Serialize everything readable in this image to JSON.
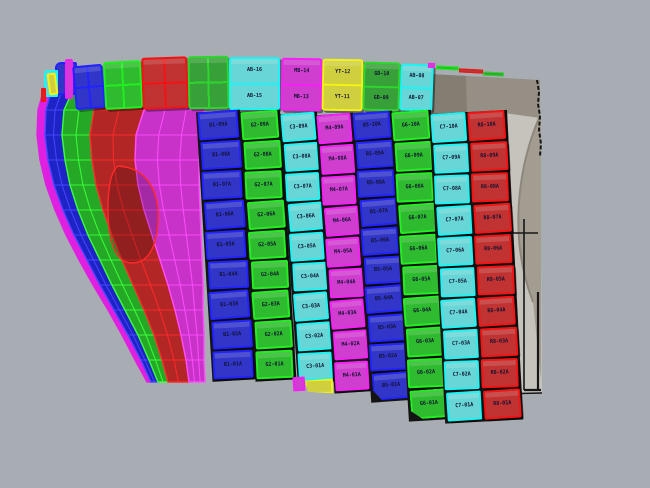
{
  "viewport": {
    "background": "#a8adb4",
    "app": "cad-shell-plating-view"
  },
  "palette": {
    "blue": {
      "fill": "#3136c9",
      "border": "#2222ff"
    },
    "green": {
      "fill": "#2fbb2f",
      "border": "#22ee22"
    },
    "green2": {
      "fill": "#38a038",
      "border": "#2fd52f"
    },
    "cyan": {
      "fill": "#68d6d6",
      "border": "#1ef2f2"
    },
    "magenta": {
      "fill": "#cf3ecf",
      "border": "#f620f6"
    },
    "red": {
      "fill": "#c13232",
      "border": "#f21414"
    },
    "yellow": {
      "fill": "#cfcf3f",
      "border": "#f2f216"
    },
    "label": "#121230",
    "gap": "#131313",
    "stern": {
      "faceTop": "#968f85",
      "faceTopDark": "#847d72",
      "panel": "#c6c3bd",
      "aperture": "#a39c90",
      "apertureEdge": "#8d877d",
      "outline": "#161616"
    },
    "hull": {
      "rim": "#e020e0",
      "blue": "#1d23c4",
      "blueLine": "#4747ff",
      "green": "#25a825",
      "greenLine": "#3cff3c",
      "red": "#b32626",
      "redLine": "#ff2a2a",
      "magenta": "#c832c8",
      "magentaLine": "#ff4cff"
    }
  },
  "top_row": {
    "grid_plates": [
      {
        "color": "blue"
      },
      {
        "color": "green"
      },
      {
        "color": "red"
      },
      {
        "color": "green2"
      }
    ],
    "labeled_plates": [
      {
        "color": "cyan",
        "labels": [
          "AB-16",
          "AB-15"
        ]
      },
      {
        "color": "magenta",
        "labels": [
          "MB-14",
          "MB-13"
        ]
      },
      {
        "color": "yellow",
        "labels": [
          "YT-12",
          "YT-11"
        ]
      },
      {
        "color": "green2",
        "labels": [
          "GD-10",
          "GD-09"
        ]
      },
      {
        "color": "cyan",
        "labels": [
          "AB-08",
          "AB-07"
        ]
      }
    ]
  },
  "columns": [
    {
      "name": "strake-1",
      "color": "blue",
      "labels": [
        "B1-09A",
        "B1-08A",
        "B1-07A",
        "B1-06A",
        "B1-05A",
        "B1-04A",
        "B1-03A",
        "B1-02A",
        "B1-01A"
      ]
    },
    {
      "name": "strake-2",
      "color": "green",
      "labels": [
        "G2-09A",
        "G2-08A",
        "G2-07A",
        "G2-06A",
        "G2-05A",
        "G2-04A",
        "G2-03A",
        "G2-02A",
        "G2-01A"
      ]
    },
    {
      "name": "strake-3",
      "color": "cyan",
      "labels": [
        "C3-09A",
        "C3-08A",
        "C3-07A",
        "C3-06A",
        "C3-05A",
        "C3-04A",
        "C3-03A",
        "C3-02A",
        "C3-01A"
      ]
    },
    {
      "name": "strake-4",
      "color": "magenta",
      "labels": [
        "M4-09A",
        "M4-08A",
        "M4-07A",
        "M4-06A",
        "M4-05A",
        "M4-04A",
        "M4-03A",
        "M4-02A",
        "M4-01A"
      ]
    },
    {
      "name": "strake-5",
      "color": "blue",
      "labels": [
        "B5-10A",
        "B5-09A",
        "B5-08A",
        "B5-07A",
        "B5-06A",
        "B5-05A",
        "B5-04A",
        "B5-03A",
        "B5-02A",
        "B5-01A"
      ]
    },
    {
      "name": "strake-6",
      "color": "green",
      "labels": [
        "G6-10A",
        "G6-09A",
        "G6-08A",
        "G6-07A",
        "G6-06A",
        "G6-05A",
        "G6-04A",
        "G6-03A",
        "G6-02A",
        "G6-01A"
      ]
    },
    {
      "name": "strake-7",
      "color": "cyan",
      "labels": [
        "C7-10A",
        "C7-09A",
        "C7-08A",
        "C7-07A",
        "C7-06A",
        "C7-05A",
        "C7-04A",
        "C7-03A",
        "C7-02A",
        "C7-01A"
      ]
    },
    {
      "name": "strake-8",
      "color": "red",
      "labels": [
        "R8-10A",
        "R8-09A",
        "R8-08A",
        "R8-07A",
        "R8-06A",
        "R8-05A",
        "R8-04A",
        "R8-03A",
        "R8-02A",
        "R8-01A"
      ]
    }
  ],
  "hull_bands": [
    {
      "name": "bow-rim-band",
      "color": "rim"
    },
    {
      "name": "bow-band-blue",
      "color": "blue",
      "line": "blueLine"
    },
    {
      "name": "bow-band-green",
      "color": "green",
      "line": "greenLine"
    },
    {
      "name": "bow-band-red",
      "color": "red",
      "line": "redLine"
    },
    {
      "name": "bow-band-magenta",
      "color": "magenta",
      "line": "magentaLine"
    }
  ],
  "bow_tip_pieces": [
    {
      "name": "tip-plate-blue",
      "color": "blue"
    },
    {
      "name": "tip-plate-magenta",
      "color": "magenta"
    },
    {
      "name": "tip-plate-cyan",
      "color": "cyan"
    },
    {
      "name": "tip-plate-yellow",
      "color": "yellow"
    },
    {
      "name": "tip-plate-red",
      "color": "red"
    }
  ],
  "bottom_extras": [
    {
      "name": "keel-tab-magenta",
      "color": "magenta"
    },
    {
      "name": "keel-wedge-yellow",
      "color": "yellow"
    }
  ],
  "stern_strip_pieces": [
    {
      "name": "deck-edge-magenta",
      "color": "magenta"
    },
    {
      "name": "deck-edge-green-1",
      "color": "green"
    },
    {
      "name": "deck-edge-red",
      "color": "red"
    },
    {
      "name": "deck-edge-green-2",
      "color": "green2"
    }
  ]
}
